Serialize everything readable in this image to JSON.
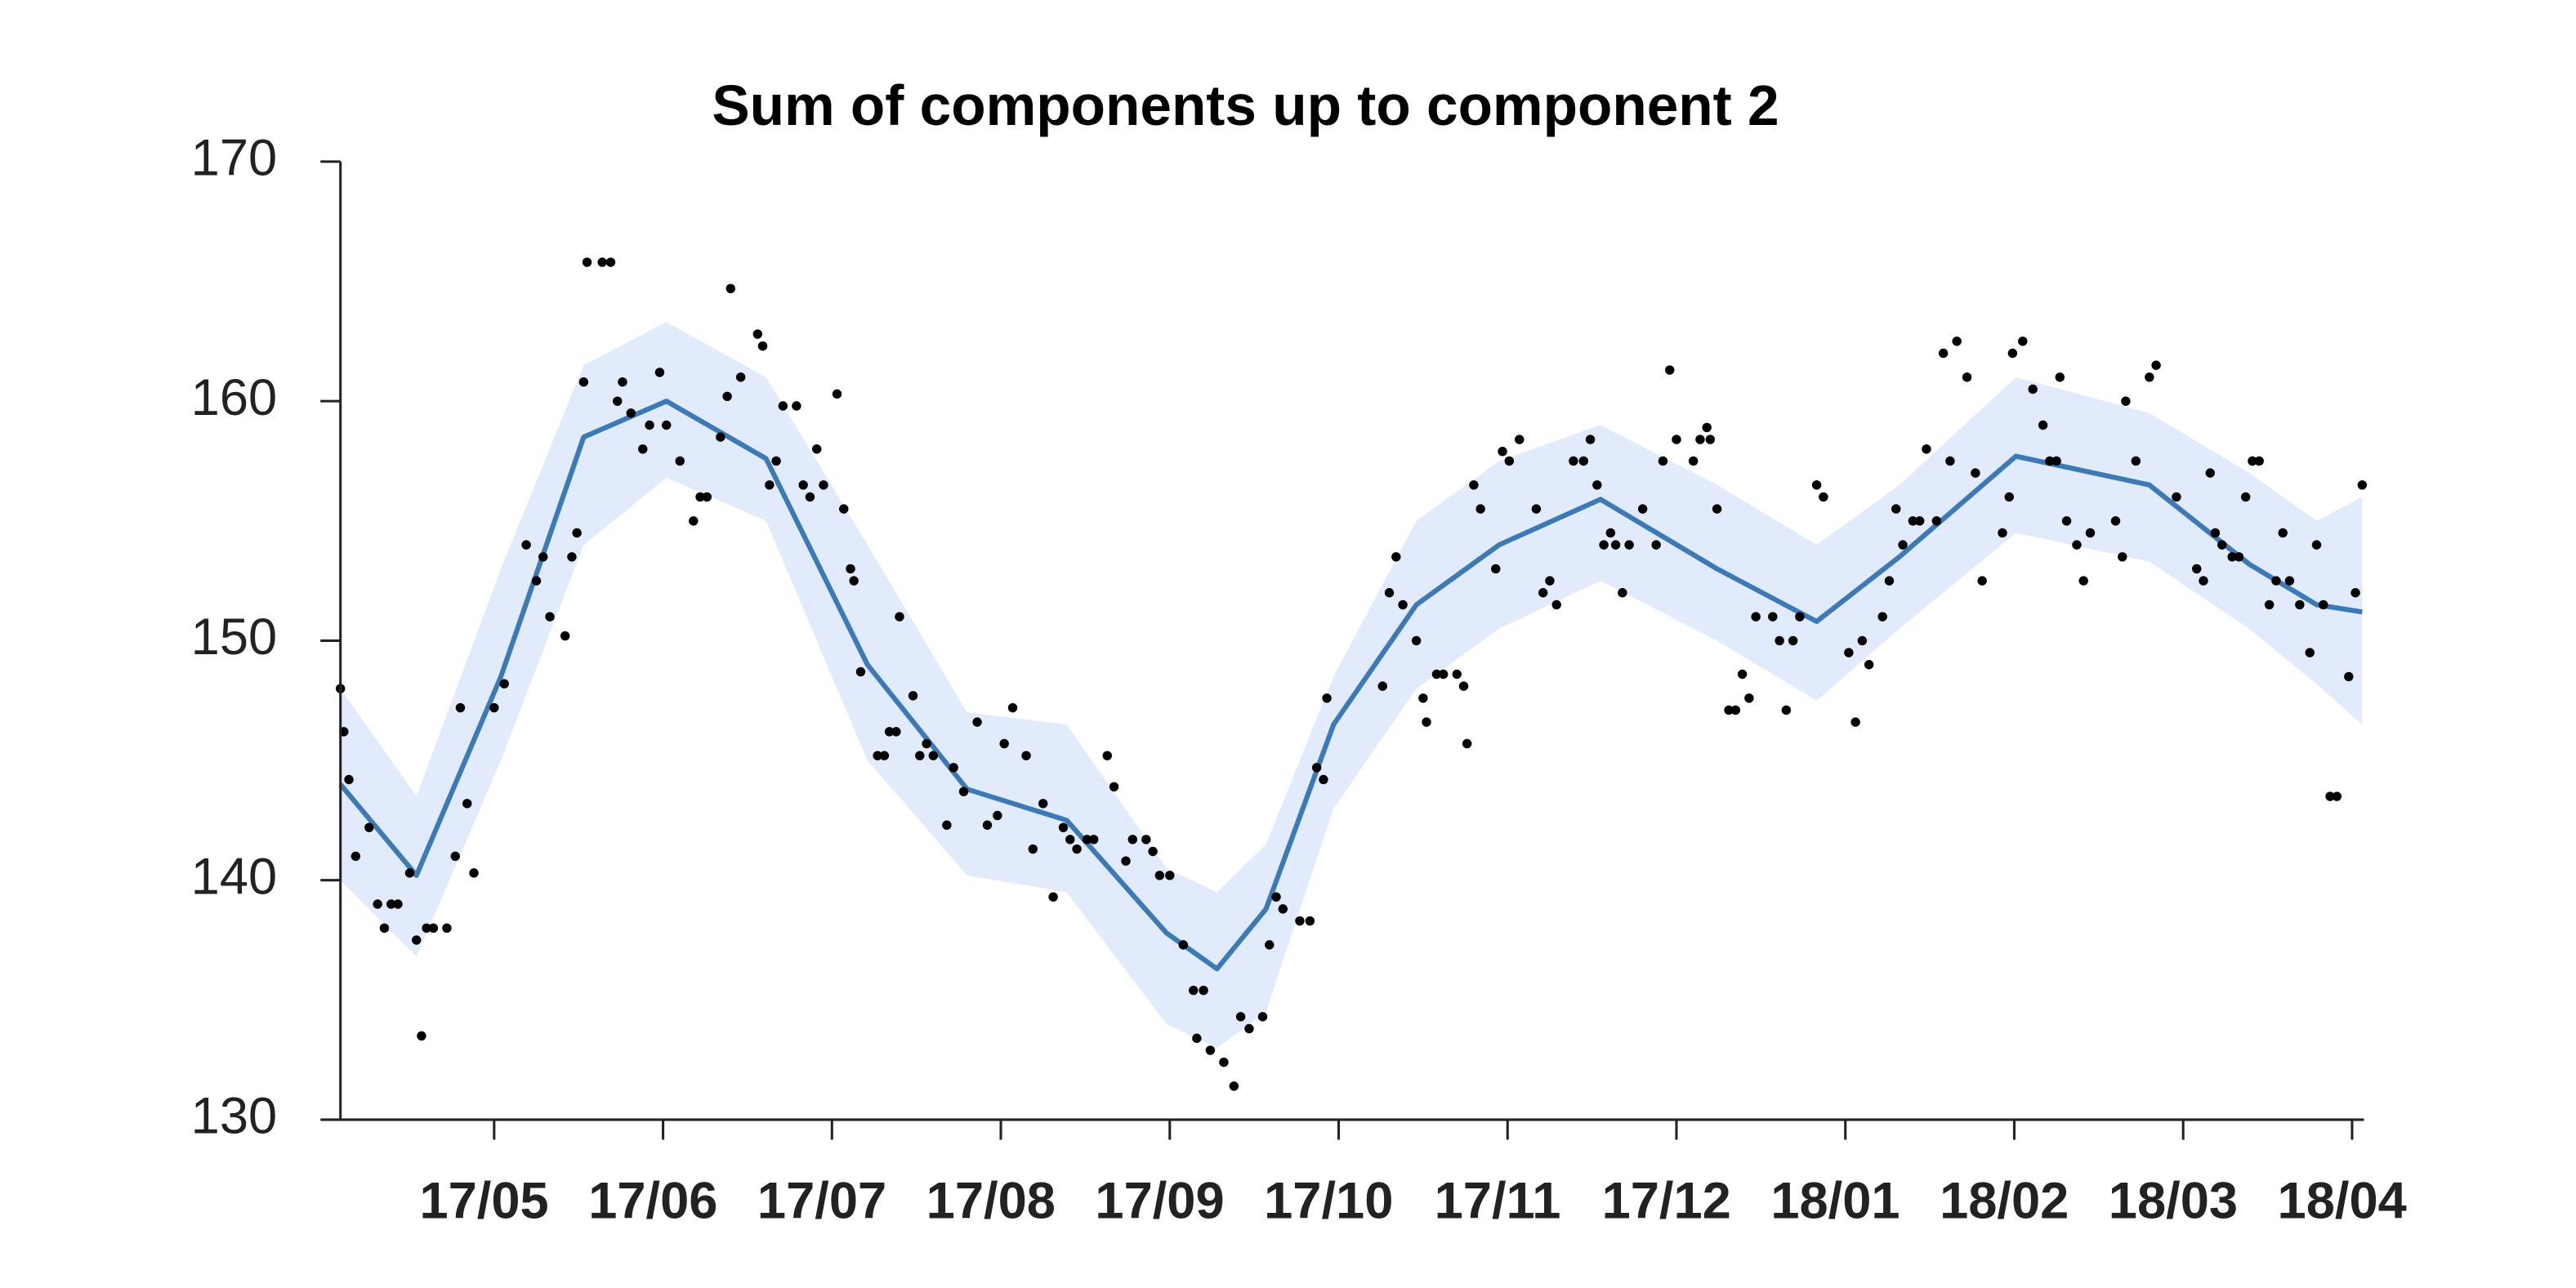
{
  "chart_data": {
    "type": "line",
    "title": "Sum of components up to component 2",
    "xlim": [
      4.09,
      16.07
    ],
    "xticks": [
      {
        "value": 5,
        "label": "17/05"
      },
      {
        "value": 6,
        "label": "17/06"
      },
      {
        "value": 7,
        "label": "17/07"
      },
      {
        "value": 8,
        "label": "17/08"
      },
      {
        "value": 9,
        "label": "17/09"
      },
      {
        "value": 10,
        "label": "17/10"
      },
      {
        "value": 11,
        "label": "17/11"
      },
      {
        "value": 12,
        "label": "17/12"
      },
      {
        "value": 13,
        "label": "18/01"
      },
      {
        "value": 14,
        "label": "18/02"
      },
      {
        "value": 15,
        "label": "18/03"
      },
      {
        "value": 16,
        "label": "18/04"
      }
    ],
    "ylim": [
      130,
      170
    ],
    "yticks": [
      130,
      140,
      150,
      160,
      170
    ],
    "band": {
      "color": "#e2ebfc",
      "x": [
        4.09,
        4.54,
        5.04,
        5.53,
        6.02,
        6.61,
        7.21,
        7.8,
        8.39,
        8.98,
        9.28,
        9.57,
        9.97,
        10.46,
        10.95,
        11.55,
        12.24,
        12.83,
        13.32,
        14.01,
        14.8,
        15.39,
        15.79,
        16.06
      ],
      "upper": [
        148,
        143.5,
        153,
        161.5,
        163.3,
        161,
        154,
        147,
        146.5,
        140.5,
        139.5,
        141.5,
        148.5,
        155,
        157.5,
        159,
        156.5,
        154,
        156.5,
        161,
        159.5,
        157,
        155,
        156
      ],
      "lower": [
        140,
        136.8,
        145,
        154,
        156.8,
        155,
        145,
        140.2,
        139.5,
        134,
        133,
        134.5,
        143,
        148,
        150.5,
        152.5,
        150,
        147.5,
        150.5,
        154.5,
        153.3,
        150.5,
        148.2,
        146.5
      ]
    },
    "mean": {
      "color": "#3a7ab8",
      "x": [
        4.09,
        4.54,
        5.04,
        5.53,
        6.02,
        6.61,
        7.21,
        7.8,
        8.39,
        8.98,
        9.28,
        9.57,
        9.97,
        10.46,
        10.95,
        11.55,
        12.24,
        12.83,
        13.32,
        14.01,
        14.8,
        15.39,
        15.79,
        16.06
      ],
      "values": [
        144,
        140.2,
        148.5,
        158.5,
        160,
        157.6,
        149,
        143.8,
        142.5,
        137.8,
        136.3,
        138.8,
        146.5,
        151.5,
        154,
        155.9,
        153,
        150.8,
        153.5,
        157.7,
        156.5,
        153.2,
        151.5,
        151.2
      ]
    },
    "points": {
      "color": "#000000",
      "x": [
        4.09,
        4.11,
        4.14,
        4.18,
        4.26,
        4.31,
        4.35,
        4.39,
        4.43,
        4.5,
        4.54,
        4.57,
        4.6,
        4.64,
        4.72,
        4.77,
        4.8,
        4.84,
        4.88,
        5.0,
        5.06,
        5.19,
        5.25,
        5.29,
        5.33,
        5.42,
        5.46,
        5.49,
        5.53,
        5.55,
        5.64,
        5.69,
        5.73,
        5.76,
        5.81,
        5.88,
        5.92,
        5.98,
        6.02,
        6.1,
        6.18,
        6.22,
        6.26,
        6.34,
        6.38,
        6.4,
        6.46,
        6.56,
        6.59,
        6.63,
        6.67,
        6.71,
        6.79,
        6.83,
        6.87,
        6.91,
        6.95,
        7.03,
        7.07,
        7.11,
        7.13,
        7.17,
        7.27,
        7.31,
        7.34,
        7.38,
        7.4,
        7.48,
        7.52,
        7.56,
        7.6,
        7.68,
        7.72,
        7.78,
        7.86,
        7.92,
        7.98,
        8.02,
        8.07,
        8.15,
        8.19,
        8.25,
        8.31,
        8.37,
        8.41,
        8.45,
        8.51,
        8.55,
        8.63,
        8.67,
        8.74,
        8.78,
        8.86,
        8.9,
        8.94,
        9.0,
        9.08,
        9.14,
        9.2,
        9.16,
        9.24,
        9.32,
        9.38,
        9.42,
        9.47,
        9.55,
        9.59,
        9.63,
        9.67,
        9.77,
        9.83,
        9.87,
        9.91,
        9.93,
        10.26,
        10.3,
        10.34,
        10.38,
        10.46,
        10.5,
        10.52,
        10.58,
        10.62,
        10.7,
        10.74,
        10.76,
        10.8,
        10.84,
        10.93,
        10.97,
        11.01,
        11.07,
        11.17,
        11.21,
        11.25,
        11.29,
        11.39,
        11.45,
        11.49,
        11.53,
        11.57,
        11.61,
        11.64,
        11.68,
        11.72,
        11.8,
        11.88,
        11.92,
        11.96,
        12.0,
        12.1,
        12.14,
        12.18,
        12.2,
        12.24,
        12.31,
        12.35,
        12.39,
        12.43,
        12.47,
        12.57,
        12.61,
        12.65,
        12.69,
        12.73,
        12.83,
        12.87,
        13.02,
        13.06,
        13.1,
        13.14,
        13.22,
        13.26,
        13.3,
        13.34,
        13.4,
        13.44,
        13.48,
        13.54,
        13.58,
        13.62,
        13.66,
        13.72,
        13.77,
        13.81,
        13.93,
        13.97,
        13.99,
        14.05,
        14.11,
        14.17,
        14.21,
        14.25,
        14.27,
        14.31,
        14.37,
        14.41,
        14.45,
        14.6,
        14.64,
        14.66,
        14.72,
        14.8,
        14.84,
        14.96,
        15.08,
        15.12,
        15.16,
        15.19,
        15.23,
        15.29,
        15.33,
        15.37,
        15.41,
        15.45,
        15.51,
        15.55,
        15.59,
        15.63,
        15.69,
        15.75,
        15.79,
        15.83,
        15.87,
        15.91,
        15.98,
        16.02,
        16.06
      ],
      "values": [
        148,
        146.2,
        144.2,
        141,
        142.2,
        139,
        138,
        139,
        139,
        140.3,
        137.5,
        133.5,
        138,
        138,
        138,
        141,
        147.2,
        143.2,
        140.3,
        147.2,
        148.2,
        154,
        152.5,
        153.5,
        151,
        150.2,
        153.5,
        154.5,
        160.8,
        165.8,
        165.8,
        165.8,
        160,
        160.8,
        159.5,
        158,
        159,
        161.2,
        159,
        157.5,
        155,
        156,
        156,
        158.5,
        160.2,
        164.7,
        161,
        162.8,
        162.3,
        156.5,
        157.5,
        159.8,
        159.8,
        156.5,
        156,
        158,
        156.5,
        160.3,
        155.5,
        153,
        152.5,
        148.7,
        145.2,
        145.2,
        146.2,
        146.2,
        151,
        147.7,
        145.2,
        145.7,
        145.2,
        142.3,
        144.7,
        143.7,
        146.6,
        142.3,
        142.7,
        145.7,
        147.2,
        145.2,
        141.3,
        143.2,
        139.3,
        142.2,
        141.7,
        141.3,
        141.7,
        141.7,
        145.2,
        143.9,
        140.8,
        141.7,
        141.7,
        141.2,
        140.2,
        140.2,
        137.3,
        135.4,
        135.4,
        133.4,
        132.9,
        132.4,
        131.4,
        134.3,
        133.8,
        134.3,
        137.3,
        139.3,
        138.8,
        138.3,
        138.3,
        144.7,
        144.2,
        147.6,
        148.1,
        152,
        153.5,
        151.5,
        150,
        147.6,
        146.6,
        148.6,
        148.6,
        148.6,
        148.1,
        145.7,
        156.5,
        155.5,
        153,
        157.9,
        157.5,
        158.4,
        155.5,
        152,
        152.5,
        151.5,
        157.5,
        157.5,
        158.4,
        156.5,
        154,
        154.5,
        154,
        152,
        154,
        155.5,
        154,
        157.5,
        161.3,
        158.4,
        157.5,
        158.4,
        158.9,
        158.4,
        155.5,
        147.1,
        147.1,
        148.6,
        147.6,
        151,
        151,
        150,
        147.1,
        150,
        151,
        156.5,
        156,
        149.5,
        146.6,
        150,
        149,
        151,
        152.5,
        155.5,
        154,
        155,
        155,
        158,
        155,
        162,
        157.5,
        162.5,
        161,
        157,
        152.5,
        154.5,
        156,
        162,
        162.5,
        160.5,
        159,
        157.5,
        157.5,
        161,
        155,
        154,
        152.5,
        154.5,
        155,
        153.5,
        160,
        157.5,
        161,
        161.5,
        156,
        153,
        152.5,
        157,
        154.5,
        154,
        153.5,
        153.5,
        156,
        157.5,
        157.5,
        151.5,
        152.5,
        154.5,
        152.5,
        151.5,
        149.5,
        154,
        151.5,
        143.5,
        143.5,
        148.5,
        152,
        156.5
      ]
    }
  }
}
